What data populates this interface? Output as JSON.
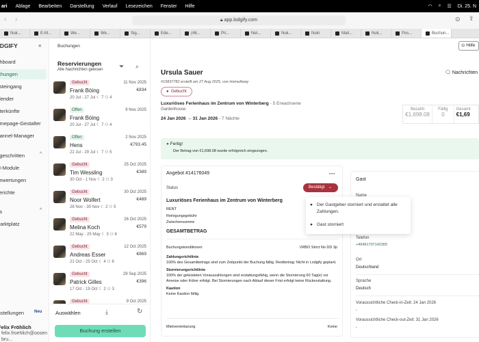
{
  "menubar": {
    "app": "ari",
    "items": [
      "Ablage",
      "Bearbeiten",
      "Darstellung",
      "Verlauf",
      "Lesezeichen",
      "Fenster",
      "Hilfe"
    ],
    "clock": "Di. 25. N"
  },
  "browser": {
    "url": "app.lodgify.com",
    "tabs": [
      "Nuk...",
      "E-M...",
      "We...",
      "We...",
      "Sig...",
      "Ede...",
      "(46...",
      "Pri...",
      "Net...",
      "Nuk...",
      "Nuki",
      "Mail...",
      "Nuk...",
      "Pos...",
      "Buchun..."
    ]
  },
  "sidebar": {
    "logo": "LODGIFY",
    "collapse": "«",
    "items": [
      "Dashboard",
      "Buchungen",
      "Posteingang",
      "Kalender",
      "Unterkünfte",
      "Homepage-Gestalter",
      "Channel-Manager"
    ],
    "advanced": "Fortgeschritten",
    "advanced_items": [
      "KI-Module",
      "Bewertungen",
      "Berichte"
    ],
    "apps": "Apps",
    "apps_items": [
      "Marktplatz"
    ],
    "settings": "Einstellungen",
    "settings_badge": "Neu",
    "user_name": "Felix Fröhlich",
    "user_email": "felix.froehlich@oosenbru..."
  },
  "breadcrumb": "Buchungen",
  "list": {
    "title": "Reservierungen",
    "subtitle": "Alle Nachrichten gelesen",
    "select": "Auswählen",
    "create": "Buchung erstellen",
    "items": [
      {
        "status": "Gebucht",
        "date": "11 Nov 2025",
        "name": "Frank Böing",
        "price": "€834",
        "meta": "20 Jul - 27 Jul   ☾ 7   ⚇ 4"
      },
      {
        "status": "Offen",
        "date": "9 Nov 2025",
        "name": "Frank Böing",
        "price": "",
        "meta": "20 Jul - 27 Jul   ☾ 7   ⚇ 4"
      },
      {
        "status": "Offen",
        "date": "2 Nov 2025",
        "name": "Hens",
        "price": "€793.45",
        "meta": "22 Jul - 29 Jul   ☾ 7   ⚇ 5"
      },
      {
        "status": "Gebucht",
        "date": "25 Oct 2025",
        "name": "Tim Wessling",
        "price": "€389",
        "meta": "30 Oct - 1 Nov   ☾ 2   ⚇ 3"
      },
      {
        "status": "Gebucht",
        "date": "30 Oct 2025",
        "name": "Noor Wolfert",
        "price": "€489",
        "meta": "28 Nov - 30 Nov   ☾ 2   ⚇ 5"
      },
      {
        "status": "Gebucht",
        "date": "26 Oct 2025",
        "name": "Melina Koch",
        "price": "€579",
        "meta": "22 May - 25 May   ☾ 3   ⚇ 6"
      },
      {
        "status": "Gebucht",
        "date": "12 Oct 2025",
        "name": "Andreas Esser",
        "price": "€869",
        "meta": "21 Oct - 25 Oct   ☾ 4   ⚇ 6"
      },
      {
        "status": "Gebucht",
        "date": "29 Sep 2025",
        "name": "Patrick Gilles",
        "price": "€396",
        "meta": "17 Oct - 19 Oct   ☾ 2   ⚇ 3"
      },
      {
        "status": "Gebucht",
        "date": "9 Oct 2025",
        "name": "",
        "price": "",
        "meta": ""
      }
    ]
  },
  "booking": {
    "help": "Hilfe",
    "guest": "Ursula Sauer",
    "messages": "Nachrichten",
    "ref": "#15837782 erstellt am 27 Aug 2025, von HomeAway",
    "status": "Gebucht",
    "property": "Luxuriöses Ferienhaus im Zentrum von Winterberg",
    "guests": " - 5 Erwachsene",
    "unit": "Gardenhouse",
    "dates": "24 Jan 2026 → 31 Jan 2026",
    "nights": " - 7 Nächte",
    "stats": [
      {
        "label": "Bezahlt",
        "value": "€1,698.08"
      },
      {
        "label": "Fällig",
        "value": "0"
      },
      {
        "label": "Gesamt",
        "value": "€1,69"
      }
    ],
    "banner_title": "Fertig!",
    "banner_text": "Der Betrag von €1,698.08 wurde erfolgreich eingezogen."
  },
  "offer": {
    "title": "Angebot #14176049",
    "status_label": "Status",
    "status_value": "Bestätigt",
    "property": "Luxuriöses Ferienhaus im Zentrum von Winterberg",
    "lines": [
      "RENT",
      "Reinigungsgebühr",
      "Zwischensumme"
    ],
    "total": "GESAMTBETRAG",
    "conditions_label": "Buchungskonditionen",
    "conditions_value": "VRBO Strict No DD 3p",
    "payment_title": "Zahlungsrichtlinie",
    "payment_text": "100% des Gesamtbetrags sind zum Zeitpunkt der Buchung fällig. Restbetrag: Nicht in Lodgify geplant.",
    "cancel_title": "Stornierungsrichtlinie",
    "cancel_text": "100% der geleisteten Vorauszahlungen sind erstattungsfähig, wenn die Stornierung 60 Tag(e) vor Anreise oder früher erfolgt. Bei Stornierungen nach Ablauf dieser Frist erfolgt keine Rückerstattung.",
    "deposit_title": "Kaution",
    "deposit_text": "Keine Kaution fällig.",
    "rental_label": "Mietvereinbarung",
    "rental_value": "Keine"
  },
  "dropdown": [
    "Der Gastgeber storniert und erstattet alle Zahlungen.",
    "Gast storniert"
  ],
  "guest": {
    "title": "Gast",
    "name_label": "Name",
    "phone_label": "Telefon",
    "phone": "+49491707142305",
    "city_label": "Ort",
    "city": "Deutschland",
    "lang_label": "Sprache",
    "lang": "Deutsch",
    "checkin": "Voraussichtliche Check-in-Zeit: 24 Jan 2026",
    "checkin_val": "-",
    "checkout": "Voraussichtliche Check-out-Zeit: 31 Jan 2026",
    "checkout_val": "-"
  },
  "colors": {
    "accent": "#6fdcb8",
    "booked": "#a8323e",
    "success_bg": "#e9f7ef"
  }
}
